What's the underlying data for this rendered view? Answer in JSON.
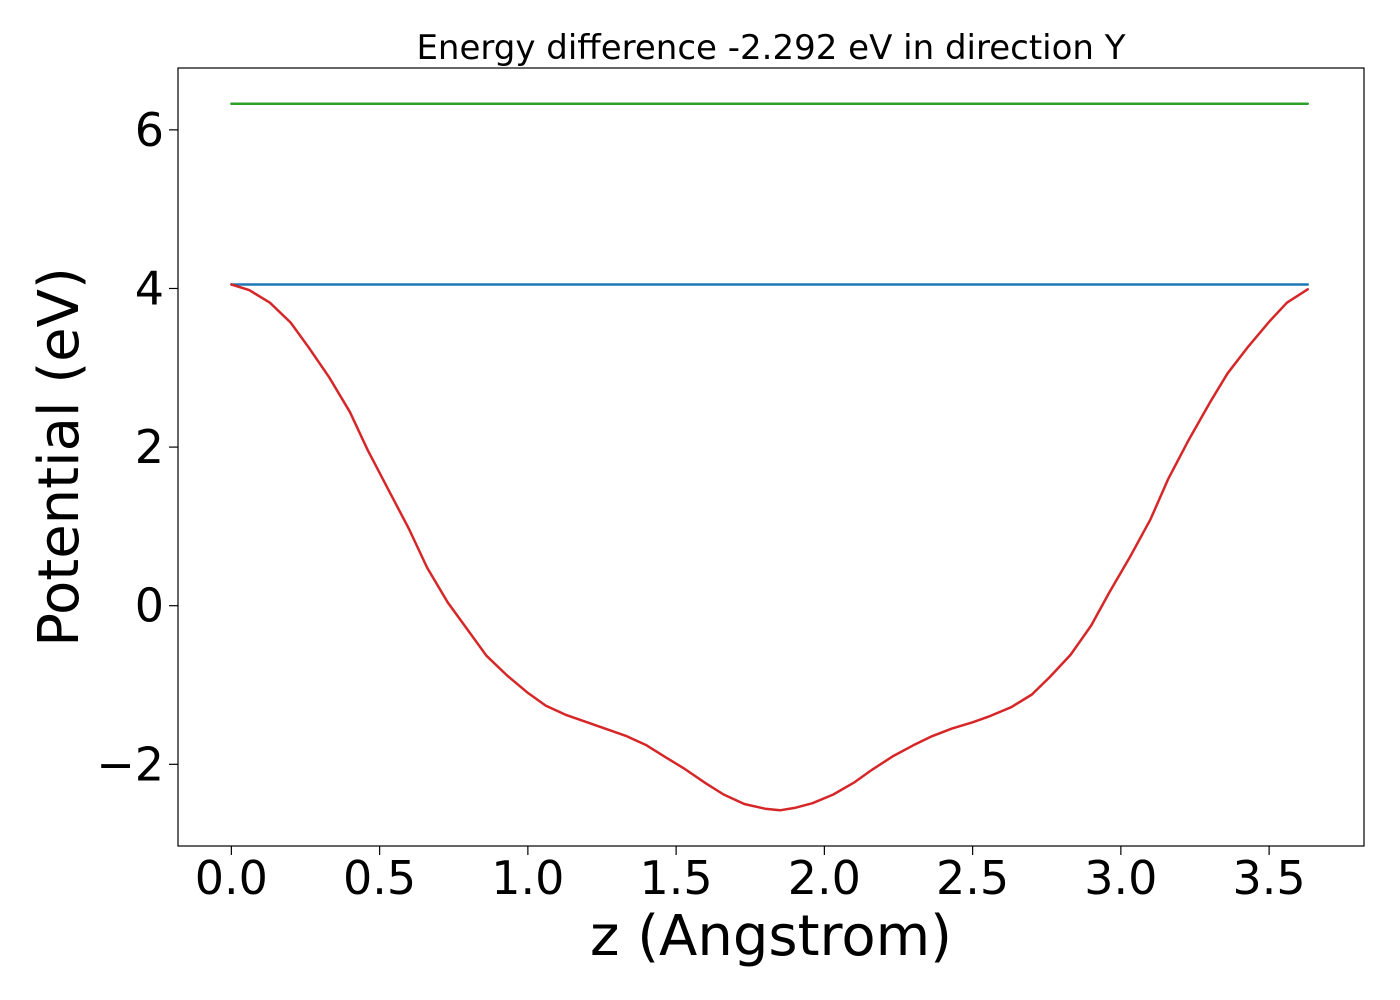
{
  "chart_data": {
    "type": "line",
    "title": "Energy difference -2.292 eV in direction Y",
    "xlabel": "z (Angstrom)",
    "ylabel": "Potential (eV)",
    "xlim": [
      -0.18,
      3.82
    ],
    "ylim": [
      -3.03,
      6.78
    ],
    "xticks": [
      0.0,
      0.5,
      1.0,
      1.5,
      2.0,
      2.5,
      3.0,
      3.5
    ],
    "xtick_labels": [
      "0.0",
      "0.5",
      "1.0",
      "1.5",
      "2.0",
      "2.5",
      "3.0",
      "3.5"
    ],
    "yticks": [
      -2,
      0,
      2,
      4,
      6
    ],
    "ytick_labels": [
      "−2",
      "0",
      "2",
      "4",
      "6"
    ],
    "grid": false,
    "series": [
      {
        "color": "#2ca02c",
        "x": [
          0.0,
          3.63
        ],
        "y": [
          6.33,
          6.33
        ]
      },
      {
        "color": "#1f77b4",
        "x": [
          0.0,
          3.63
        ],
        "y": [
          4.05,
          4.05
        ]
      },
      {
        "color": "#d62728",
        "x": [
          0.0,
          0.06,
          0.13,
          0.2,
          0.26,
          0.33,
          0.4,
          0.46,
          0.53,
          0.6,
          0.66,
          0.73,
          0.8,
          0.86,
          0.93,
          1.0,
          1.06,
          1.13,
          1.2,
          1.26,
          1.33,
          1.4,
          1.46,
          1.53,
          1.6,
          1.66,
          1.73,
          1.8,
          1.85,
          1.9,
          1.96,
          2.03,
          2.1,
          2.16,
          2.23,
          2.3,
          2.36,
          2.43,
          2.5,
          2.56,
          2.63,
          2.7,
          2.76,
          2.83,
          2.9,
          2.96,
          3.03,
          3.1,
          3.16,
          3.23,
          3.3,
          3.36,
          3.43,
          3.5,
          3.56,
          3.63
        ],
        "y": [
          4.05,
          3.98,
          3.82,
          3.57,
          3.26,
          2.88,
          2.44,
          1.96,
          1.46,
          0.96,
          0.48,
          0.04,
          -0.32,
          -0.63,
          -0.88,
          -1.1,
          -1.26,
          -1.38,
          -1.47,
          -1.55,
          -1.64,
          -1.76,
          -1.9,
          -2.06,
          -2.24,
          -2.38,
          -2.5,
          -2.56,
          -2.58,
          -2.55,
          -2.49,
          -2.38,
          -2.23,
          -2.07,
          -1.9,
          -1.76,
          -1.65,
          -1.55,
          -1.47,
          -1.39,
          -1.28,
          -1.12,
          -0.9,
          -0.62,
          -0.25,
          0.16,
          0.61,
          1.09,
          1.6,
          2.1,
          2.56,
          2.93,
          3.27,
          3.58,
          3.82,
          3.99
        ]
      }
    ]
  }
}
